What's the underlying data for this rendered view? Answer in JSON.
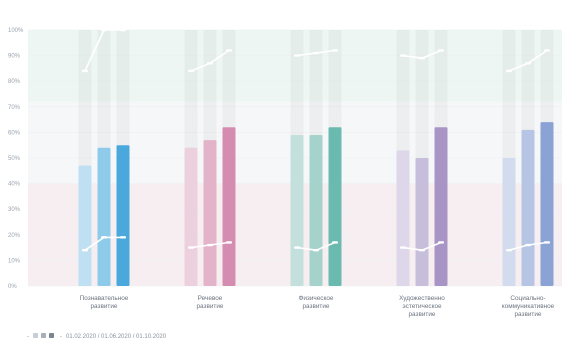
{
  "chart_data": {
    "type": "bar",
    "ylim": [
      0,
      100
    ],
    "y_ticks": [
      "0%",
      "10%",
      "20%",
      "30%",
      "40%",
      "50%",
      "60%",
      "70%",
      "80%",
      "90%",
      "100%"
    ],
    "bands": [
      {
        "from": 0,
        "to": 40,
        "color": "#f7eef1"
      },
      {
        "from": 40,
        "to": 72,
        "color": "#f6f7f8"
      },
      {
        "from": 72,
        "to": 100,
        "color": "#eef6f3"
      }
    ],
    "categories": [
      {
        "label": "Познавательное развитие",
        "lines": [
          "Познавательное",
          "развитие"
        ]
      },
      {
        "label": "Речевое развитие",
        "lines": [
          "Речевое",
          "развитие"
        ]
      },
      {
        "label": "Физическое развитие",
        "lines": [
          "Физическое",
          "развитие"
        ]
      },
      {
        "label": "Художественно-эстетическое развитие",
        "lines": [
          "Художественно",
          "эстетическое",
          "развитие"
        ]
      },
      {
        "label": "Социально-коммуникативное развитие",
        "lines": [
          "Социально-",
          "коммуникативное",
          "развитие"
        ]
      }
    ],
    "series": [
      {
        "name": "01.02.2020",
        "values": [
          47,
          54,
          59,
          53,
          50
        ]
      },
      {
        "name": "01.06.2020",
        "values": [
          54,
          57,
          59,
          50,
          61
        ]
      },
      {
        "name": "01.10.2020",
        "values": [
          55,
          62,
          62,
          62,
          64
        ]
      }
    ],
    "upper_markers": [
      [
        84,
        100,
        100
      ],
      [
        84,
        87,
        92
      ],
      [
        90,
        91,
        92
      ],
      [
        90,
        89,
        92
      ],
      [
        84,
        87,
        92
      ]
    ],
    "lower_markers": [
      [
        14,
        19,
        19
      ],
      [
        15,
        16,
        17
      ],
      [
        15,
        14,
        17
      ],
      [
        15,
        14,
        17
      ],
      [
        14,
        16,
        17
      ]
    ],
    "category_colors": [
      [
        "#bfe0f2",
        "#8ecbea",
        "#4aa8dc"
      ],
      [
        "#ecd0dd",
        "#e3b3c9",
        "#d48db0"
      ],
      [
        "#c3e0dc",
        "#a6d2cc",
        "#6bbab0"
      ],
      [
        "#ddd7e9",
        "#c7bedc",
        "#a895c6"
      ],
      [
        "#d3dcee",
        "#b6c5e3",
        "#8aa2d4"
      ]
    ],
    "legend": {
      "label": "01.02.2020 / 01.06.2020 / 01.10.2020",
      "swatch_colors": [
        "#c8ced6",
        "#a7afbb",
        "#7c8592"
      ]
    },
    "grid": true
  }
}
